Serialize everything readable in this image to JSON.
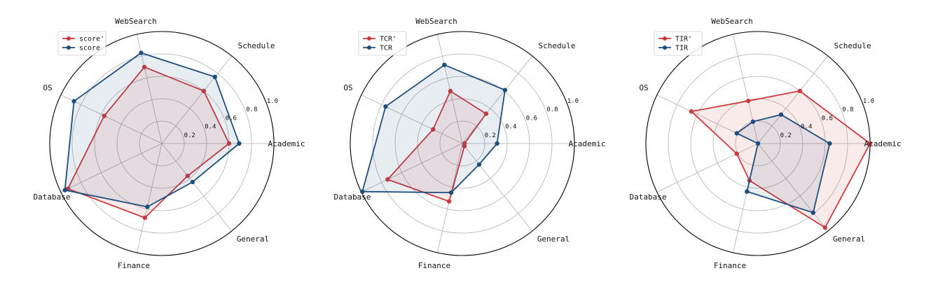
{
  "chart_data": [
    {
      "type": "radar",
      "categories": [
        "Academic",
        "Schedule",
        "WebSearch",
        "OS",
        "Database",
        "Finance",
        "General"
      ],
      "rlim": [
        0,
        1.0
      ],
      "rticks": [
        "0.2",
        "0.4",
        "0.6",
        "0.8",
        "1.0"
      ],
      "grid": true,
      "legend_position": "top-left",
      "series": [
        {
          "name": "score'",
          "color": "#cc3a3f",
          "values": [
            0.6,
            0.6,
            0.7,
            0.57,
            0.93,
            0.68,
            0.37
          ]
        },
        {
          "name": "score",
          "color": "#1d4e7e",
          "values": [
            0.69,
            0.76,
            0.83,
            0.87,
            0.96,
            0.58,
            0.44
          ]
        }
      ]
    },
    {
      "type": "radar",
      "categories": [
        "Academic",
        "Schedule",
        "WebSearch",
        "OS",
        "Database",
        "Finance",
        "General"
      ],
      "rlim": [
        0,
        1.0
      ],
      "rticks": [
        "0.2",
        "0.4",
        "0.6",
        "0.8",
        "1.0"
      ],
      "grid": true,
      "legend_position": "top-left",
      "series": [
        {
          "name": "TCR'",
          "color": "#cc3a3f",
          "values": [
            0.02,
            0.34,
            0.48,
            0.29,
            0.74,
            0.53,
            0.03
          ]
        },
        {
          "name": "TCR",
          "color": "#1d4e7e",
          "values": [
            0.31,
            0.61,
            0.72,
            0.76,
            0.99,
            0.45,
            0.24
          ]
        }
      ]
    },
    {
      "type": "radar",
      "categories": [
        "Academic",
        "Schedule",
        "WebSearch",
        "OS",
        "Database",
        "Finance",
        "General"
      ],
      "rlim": [
        0,
        1.0
      ],
      "rticks": [
        "0.2",
        "0.4",
        "0.6",
        "0.8",
        "1.0"
      ],
      "grid": true,
      "legend_position": "top-left",
      "series": [
        {
          "name": "TIR'",
          "color": "#cc3a3f",
          "values": [
            1.0,
            0.6,
            0.39,
            0.66,
            0.21,
            0.34,
            0.96
          ]
        },
        {
          "name": "TIR",
          "color": "#1d4e7e",
          "values": [
            0.64,
            0.33,
            0.2,
            0.21,
            0.0,
            0.44,
            0.79
          ]
        }
      ]
    }
  ]
}
